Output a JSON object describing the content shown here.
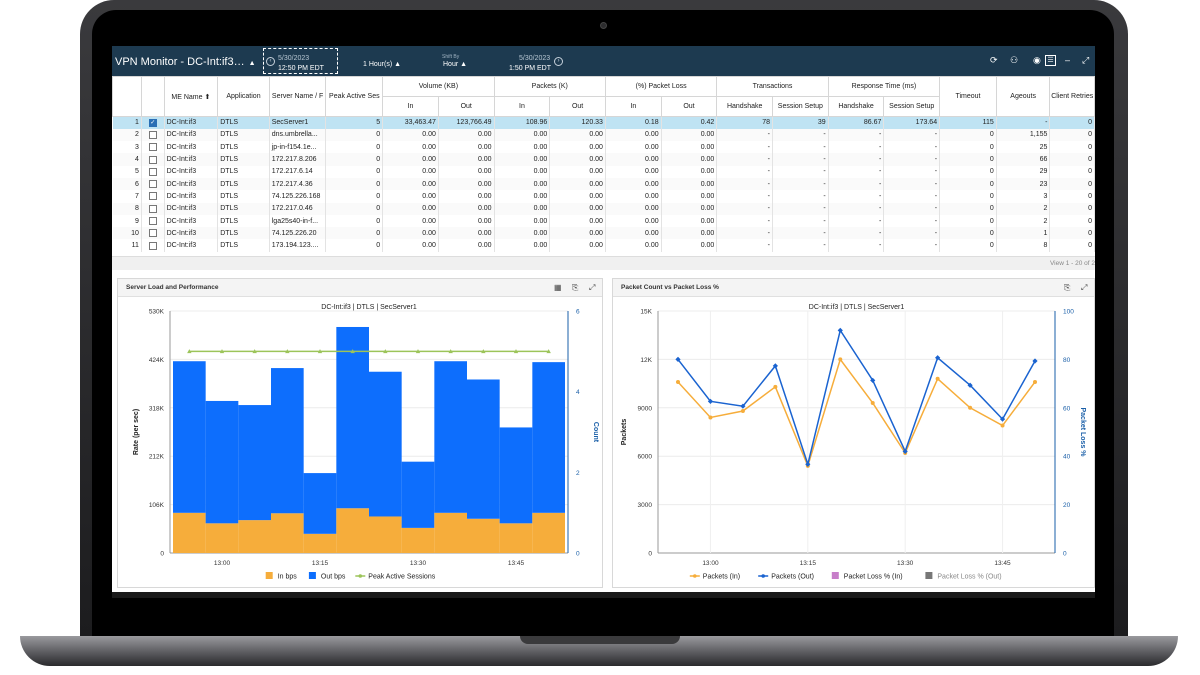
{
  "app": {
    "title": "VPN Monitor - DC-Int:if3…",
    "start_date": "5/30/2023",
    "start_time": "12:50 PM EDT",
    "duration": "1 Hour(s)",
    "shift_label": "Shift By",
    "shift_value": "Hour",
    "end_date": "5/30/2023",
    "end_time": "1:50 PM EDT"
  },
  "table": {
    "headers": {
      "me_name": "ME Name",
      "application": "Application",
      "server_name": "Server Name / F",
      "peak_active": "Peak Active Ses",
      "volume": "Volume (KB)",
      "packets": "Packets (K)",
      "packet_loss": "(%) Packet Loss",
      "transactions": "Transactions",
      "response_time": "Response Time (ms)",
      "timeout": "Timeout",
      "ageouts": "Ageouts",
      "client_retries": "Client Retries",
      "in": "In",
      "out": "Out",
      "handshake": "Handshake",
      "session_setup": "Session Setup"
    },
    "rows": [
      [
        "1",
        "DC-Int:if3",
        "DTLS",
        "SecServer1",
        "5",
        "33,463.47",
        "123,766.49",
        "108.96",
        "120.33",
        "0.18",
        "0.42",
        "78",
        "39",
        "86.67",
        "173.64",
        "115",
        "-",
        "0"
      ],
      [
        "2",
        "DC-Int:if3",
        "DTLS",
        "dns.umbrella...",
        "0",
        "0.00",
        "0.00",
        "0.00",
        "0.00",
        "0.00",
        "0.00",
        "-",
        "-",
        "-",
        "-",
        "0",
        "1,155",
        "0"
      ],
      [
        "3",
        "DC-Int:if3",
        "DTLS",
        "jp-in-f154.1e...",
        "0",
        "0.00",
        "0.00",
        "0.00",
        "0.00",
        "0.00",
        "0.00",
        "-",
        "-",
        "-",
        "-",
        "0",
        "25",
        "0"
      ],
      [
        "4",
        "DC-Int:if3",
        "DTLS",
        "172.217.8.206",
        "0",
        "0.00",
        "0.00",
        "0.00",
        "0.00",
        "0.00",
        "0.00",
        "-",
        "-",
        "-",
        "-",
        "0",
        "66",
        "0"
      ],
      [
        "5",
        "DC-Int:if3",
        "DTLS",
        "172.217.6.14",
        "0",
        "0.00",
        "0.00",
        "0.00",
        "0.00",
        "0.00",
        "0.00",
        "-",
        "-",
        "-",
        "-",
        "0",
        "29",
        "0"
      ],
      [
        "6",
        "DC-Int:if3",
        "DTLS",
        "172.217.4.36",
        "0",
        "0.00",
        "0.00",
        "0.00",
        "0.00",
        "0.00",
        "0.00",
        "-",
        "-",
        "-",
        "-",
        "0",
        "23",
        "0"
      ],
      [
        "7",
        "DC-Int:if3",
        "DTLS",
        "74.125.226.168",
        "0",
        "0.00",
        "0.00",
        "0.00",
        "0.00",
        "0.00",
        "0.00",
        "-",
        "-",
        "-",
        "-",
        "0",
        "3",
        "0"
      ],
      [
        "8",
        "DC-Int:if3",
        "DTLS",
        "172.217.0.46",
        "0",
        "0.00",
        "0.00",
        "0.00",
        "0.00",
        "0.00",
        "0.00",
        "-",
        "-",
        "-",
        "-",
        "0",
        "2",
        "0"
      ],
      [
        "9",
        "DC-Int:if3",
        "DTLS",
        "lga25s40-in-f...",
        "0",
        "0.00",
        "0.00",
        "0.00",
        "0.00",
        "0.00",
        "0.00",
        "-",
        "-",
        "-",
        "-",
        "0",
        "2",
        "0"
      ],
      [
        "10",
        "DC-Int:if3",
        "DTLS",
        "74.125.226.20",
        "0",
        "0.00",
        "0.00",
        "0.00",
        "0.00",
        "0.00",
        "0.00",
        "-",
        "-",
        "-",
        "-",
        "0",
        "1",
        "0"
      ],
      [
        "11",
        "DC-Int:if3",
        "DTLS",
        "173.194.123....",
        "0",
        "0.00",
        "0.00",
        "0.00",
        "0.00",
        "0.00",
        "0.00",
        "-",
        "-",
        "-",
        "-",
        "0",
        "8",
        "0"
      ]
    ],
    "pager": "View 1 - 20 of 2"
  },
  "panels": {
    "left_title": "Server Load and Performance",
    "right_title": "Packet Count vs Packet Loss %"
  },
  "chart_data": [
    {
      "type": "bar",
      "title": "DC-Int:if3 | DTLS | SecServer1",
      "ylabel": "Rate (per sec)",
      "y2label": "Count",
      "ylim": [
        0,
        530000
      ],
      "y_ticks": [
        "0",
        "106K",
        "212K",
        "318K",
        "424K",
        "530K"
      ],
      "y2lim": [
        0,
        6
      ],
      "y2_ticks": [
        "0",
        "2",
        "4",
        "6"
      ],
      "x_ticks": [
        "13:00",
        "13:15",
        "13:30",
        "13:45"
      ],
      "stacked": true,
      "series": [
        {
          "name": "In bps",
          "color": "#f6ad3b",
          "values": [
            88000,
            65000,
            72000,
            87000,
            42000,
            98000,
            80000,
            55000,
            88000,
            75000,
            65000,
            88000
          ]
        },
        {
          "name": "Out bps",
          "color": "#0d6efd",
          "values": [
            332000,
            268000,
            252000,
            318000,
            133000,
            397000,
            317000,
            145000,
            332000,
            305000,
            210000,
            330000
          ]
        },
        {
          "name": "Peak Active Sessions",
          "color": "#9cc45a",
          "type": "line",
          "values": [
            5,
            5,
            5,
            5,
            5,
            5,
            5,
            5,
            5,
            5,
            5,
            5
          ]
        }
      ],
      "legend": "bottom"
    },
    {
      "type": "line",
      "title": "DC-Int:if3 | DTLS | SecServer1",
      "ylabel": "Packets",
      "y2label": "Packet Loss %",
      "ylim": [
        0,
        15000
      ],
      "y_ticks": [
        "0",
        "3000",
        "6000",
        "9000",
        "12K",
        "15K"
      ],
      "y2lim": [
        0,
        100
      ],
      "y2_ticks": [
        "0",
        "20",
        "40",
        "60",
        "80",
        "100"
      ],
      "x_ticks": [
        "13:00",
        "13:15",
        "13:30",
        "13:45"
      ],
      "series": [
        {
          "name": "Packets (In)",
          "color": "#f6ad3b",
          "values": [
            10600,
            8400,
            8800,
            10300,
            5400,
            12000,
            9300,
            6200,
            10800,
            9000,
            7900,
            10600
          ]
        },
        {
          "name": "Packets (Out)",
          "color": "#1a63d0",
          "values": [
            12000,
            9400,
            9100,
            11600,
            5500,
            13800,
            10700,
            6300,
            12100,
            10400,
            8300,
            11900
          ]
        },
        {
          "name": "Packet Loss % (In)",
          "color": "#c77ec9",
          "values": []
        },
        {
          "name": "Packet Loss % (Out)",
          "color": "#777777",
          "values": [],
          "disabled": true
        }
      ],
      "legend": "bottom"
    }
  ]
}
